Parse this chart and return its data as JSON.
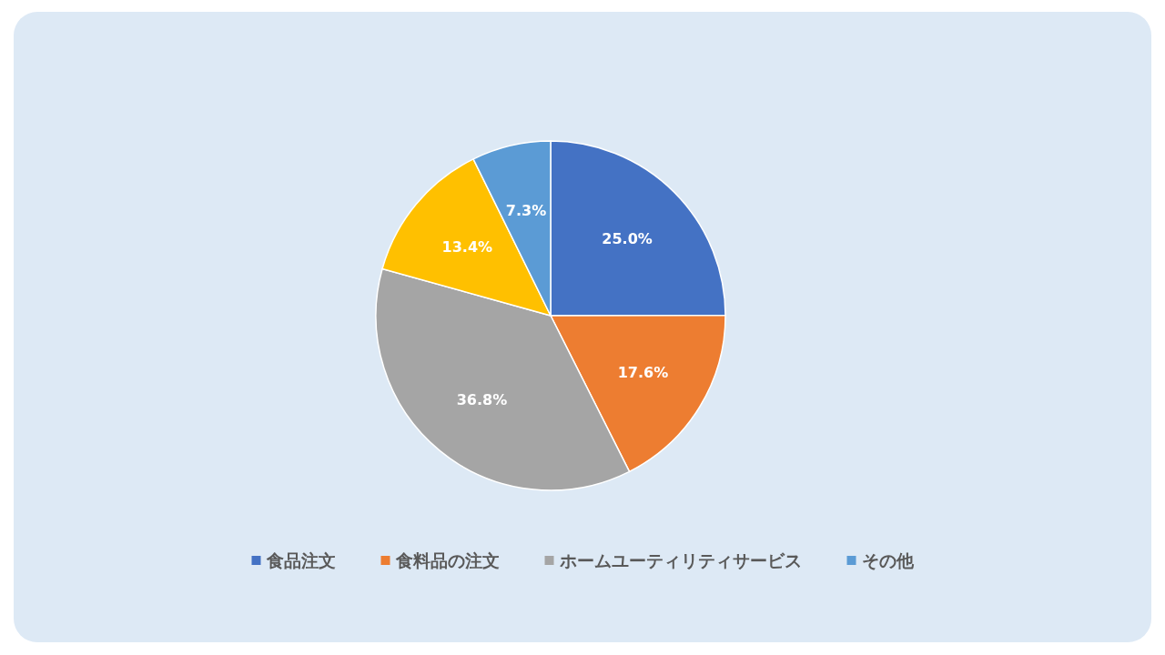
{
  "chart_data": {
    "type": "pie",
    "categories": [
      "食品注文",
      "食料品の注文",
      "ホームユーティリティサービス",
      null,
      "その他"
    ],
    "values": [
      25.0,
      17.6,
      36.8,
      13.4,
      7.3
    ],
    "colors": [
      "#4472c4",
      "#ed7d31",
      "#a5a5a5",
      "#ffc000",
      "#5b9bd5"
    ],
    "value_labels": [
      "25.0%",
      "17.6%",
      "36.8%",
      "13.4%",
      "7.3%"
    ],
    "legend": "bottom"
  }
}
